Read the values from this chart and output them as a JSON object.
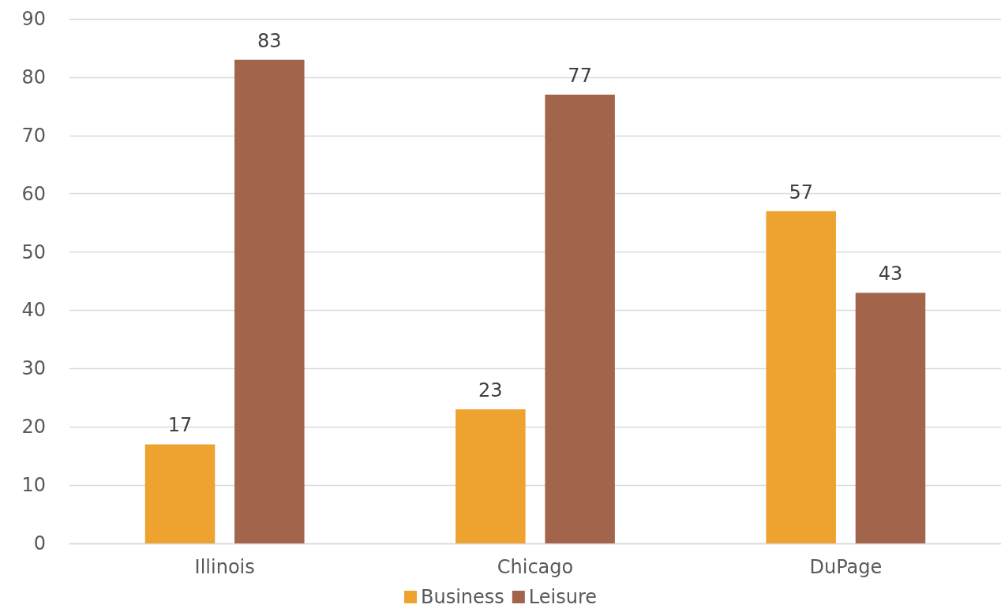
{
  "chart_data": {
    "type": "bar",
    "categories": [
      "Illinois",
      "Chicago",
      "DuPage"
    ],
    "series": [
      {
        "name": "Business",
        "color": "#eea22f",
        "values": [
          17,
          23,
          57
        ]
      },
      {
        "name": "Leisure",
        "color": "#a3644c",
        "values": [
          83,
          77,
          43
        ]
      }
    ],
    "ylim": [
      0,
      90
    ],
    "yticks": [
      0,
      10,
      20,
      30,
      40,
      50,
      60,
      70,
      80,
      90
    ],
    "grid": "y",
    "legend": "bottom",
    "data_labels": true
  }
}
